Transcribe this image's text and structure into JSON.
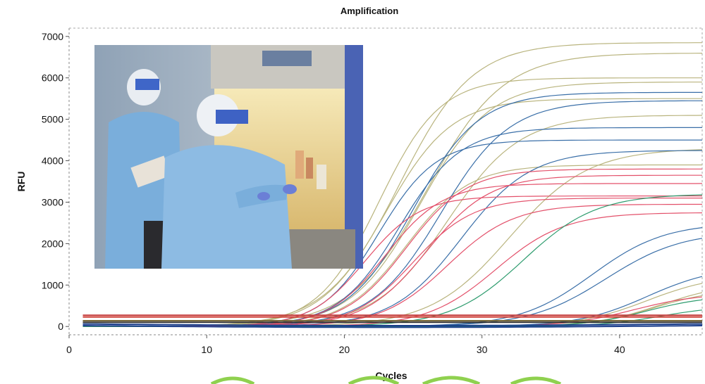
{
  "chart_data": {
    "type": "line",
    "title": "Amplification",
    "xlabel": "Cycles",
    "ylabel": "RFU",
    "xlim": [
      0,
      46
    ],
    "ylim": [
      -200,
      7200
    ],
    "xticks": [
      "0",
      "10",
      "20",
      "30",
      "40"
    ],
    "yticks": [
      "0",
      "1000",
      "2000",
      "3000",
      "4000",
      "5000",
      "6000",
      "7000"
    ],
    "grid": false,
    "series_groups": [
      {
        "color": "#b9b47e",
        "curves": [
          {
            "plateau": 6850,
            "midpoint": 24.0,
            "slope": 0.38
          },
          {
            "plateau": 6600,
            "midpoint": 26.0,
            "slope": 0.36
          },
          {
            "plateau": 6000,
            "midpoint": 22.5,
            "slope": 0.45
          },
          {
            "plateau": 5900,
            "midpoint": 25.5,
            "slope": 0.4
          },
          {
            "plateau": 5500,
            "midpoint": 23.0,
            "slope": 0.42
          },
          {
            "plateau": 5100,
            "midpoint": 27.5,
            "slope": 0.38
          },
          {
            "plateau": 4300,
            "midpoint": 32.0,
            "slope": 0.35
          },
          {
            "plateau": 3900,
            "midpoint": 24.5,
            "slope": 0.44
          },
          {
            "plateau": 1250,
            "midpoint": 42.0,
            "slope": 0.4
          },
          {
            "plateau": 1050,
            "midpoint": 43.0,
            "slope": 0.42
          },
          {
            "plateau": 900,
            "midpoint": 42.5,
            "slope": 0.45
          }
        ]
      },
      {
        "color": "#3a6fa8",
        "curves": [
          {
            "plateau": 5650,
            "midpoint": 25.0,
            "slope": 0.42
          },
          {
            "plateau": 5450,
            "midpoint": 27.0,
            "slope": 0.4
          },
          {
            "plateau": 4800,
            "midpoint": 24.0,
            "slope": 0.45
          },
          {
            "plateau": 4500,
            "midpoint": 22.5,
            "slope": 0.48
          },
          {
            "plateau": 4250,
            "midpoint": 28.5,
            "slope": 0.4
          },
          {
            "plateau": 2500,
            "midpoint": 38.0,
            "slope": 0.38
          },
          {
            "plateau": 2300,
            "midpoint": 39.0,
            "slope": 0.36
          },
          {
            "plateau": 1450,
            "midpoint": 42.0,
            "slope": 0.4
          }
        ]
      },
      {
        "color": "#e3506a",
        "curves": [
          {
            "plateau": 3800,
            "midpoint": 24.5,
            "slope": 0.45
          },
          {
            "plateau": 3650,
            "midpoint": 26.0,
            "slope": 0.44
          },
          {
            "plateau": 3450,
            "midpoint": 23.0,
            "slope": 0.48
          },
          {
            "plateau": 3150,
            "midpoint": 21.5,
            "slope": 0.5
          },
          {
            "plateau": 3100,
            "midpoint": 25.0,
            "slope": 0.46
          },
          {
            "plateau": 2950,
            "midpoint": 27.5,
            "slope": 0.42
          },
          {
            "plateau": 2750,
            "midpoint": 31.0,
            "slope": 0.4
          },
          {
            "plateau": 800,
            "midpoint": 41.0,
            "slope": 0.42
          }
        ]
      },
      {
        "color": "#2e9c6e",
        "curves": [
          {
            "plateau": 750,
            "midpoint": 42.0,
            "slope": 0.45
          },
          {
            "plateau": 500,
            "midpoint": 43.0,
            "slope": 0.45
          },
          {
            "plateau": 3200,
            "midpoint": 33.0,
            "slope": 0.38
          }
        ]
      }
    ],
    "baselines": [
      {
        "color": "#c43a3a",
        "y": 270
      },
      {
        "color": "#d0443b",
        "y": 230
      },
      {
        "color": "#1b3e8c",
        "y": 60
      },
      {
        "color": "#1b3e8c",
        "y": 20
      },
      {
        "color": "#7a6a3a",
        "y": 140
      },
      {
        "color": "#333333",
        "y": 100
      }
    ],
    "inset_photo": "laboratory-workers-in-protective-suits-at-biosafety-cabinet"
  }
}
